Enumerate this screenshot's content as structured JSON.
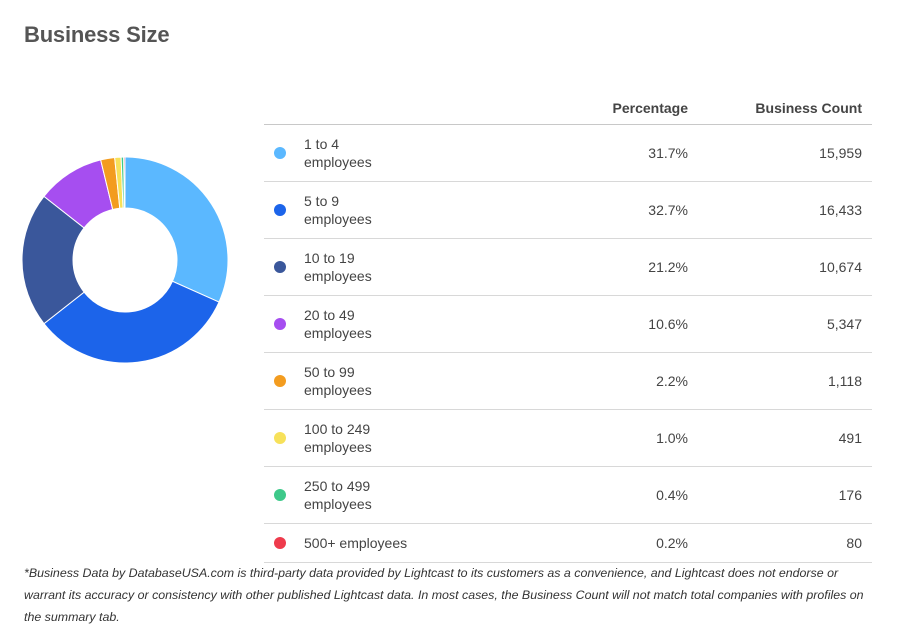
{
  "title": "Business Size",
  "table": {
    "headers": [
      "Percentage",
      "Business Count"
    ]
  },
  "colors": [
    "#5bb8ff",
    "#1c64ea",
    "#3a579b",
    "#a64ef0",
    "#f39c1f",
    "#f7e15a",
    "#3ec98a",
    "#ee3b4c"
  ],
  "chart_data": {
    "type": "pie",
    "categories": [
      "1 to 4 employees",
      "5 to 9 employees",
      "10 to 19 employees",
      "20 to 49 employees",
      "50 to 99 employees",
      "100 to 249 employees",
      "250 to 499 employees",
      "500+ employees"
    ],
    "percentages": [
      "31.7%",
      "32.7%",
      "21.2%",
      "10.6%",
      "2.2%",
      "1.0%",
      "0.4%",
      "0.2%"
    ],
    "counts": [
      "15,959",
      "16,433",
      "10,674",
      "5,347",
      "1,118",
      "491",
      "176",
      "80"
    ],
    "values": [
      31.7,
      32.7,
      21.2,
      10.6,
      2.2,
      1.0,
      0.4,
      0.2
    ]
  },
  "footnote": "*Business Data by DatabaseUSA.com is third-party data provided by Lightcast to its customers as a convenience, and Lightcast does not endorse or warrant its accuracy or consistency with other published Lightcast data. In most cases, the Business Count will not match total companies with profiles on the summary tab."
}
